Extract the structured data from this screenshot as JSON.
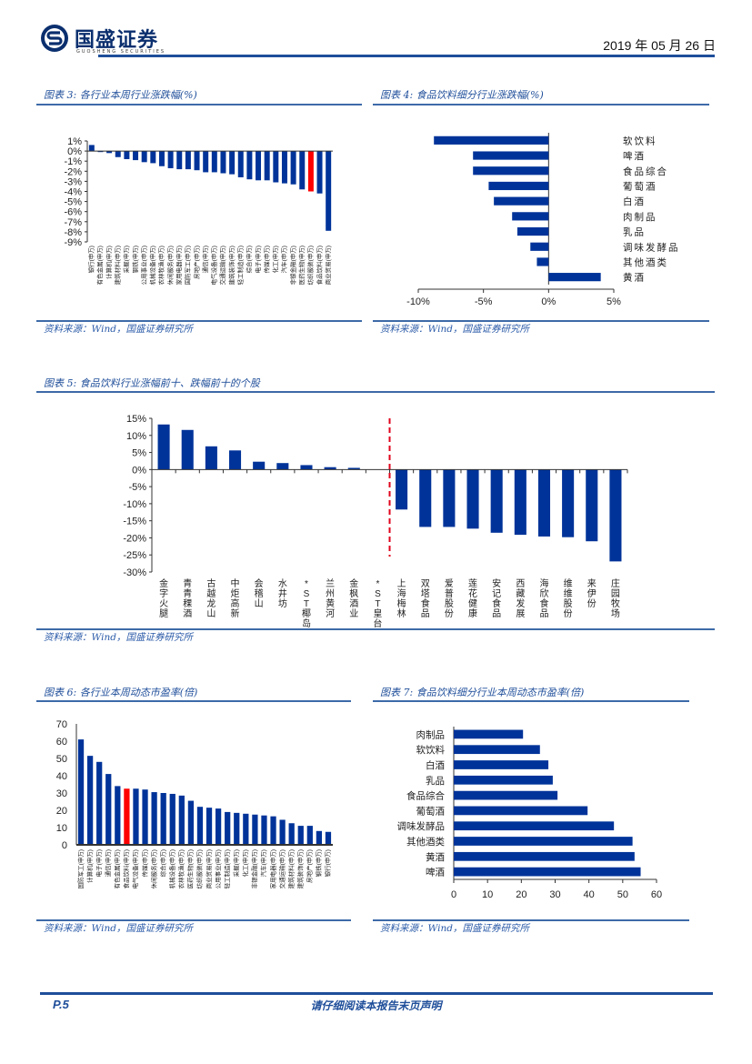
{
  "header": {
    "logo_name": "国盛证券",
    "logo_sub": "GUOSHENG SECURITIES",
    "date": "2019 年 05 月 26 日"
  },
  "colors": {
    "bar": "#003399",
    "highlight": "#ff0000",
    "accent": "#1f4e9a",
    "divider": "#e0001b"
  },
  "figures": [
    {
      "title": "图表 3:  各行业本周行业涨跌幅(%)",
      "source": "资料来源：Wind，国盛证券研究所"
    },
    {
      "title": "图表 4:  食品饮料细分行业涨跌幅(%)",
      "source": "资料来源：Wind，国盛证券研究所"
    },
    {
      "title": "图表 5:  食品饮料行业涨幅前十、跌幅前十的个股",
      "source": "资料来源：Wind，国盛证券研究所"
    },
    {
      "title": "图表 6:  各行业本周动态市盈率(倍)",
      "source": "资料来源：Wind，国盛证券研究所"
    },
    {
      "title": "图表 7:  食品饮料细分行业本周动态市盈率(倍)",
      "source": "资料来源：Wind，国盛证券研究所"
    }
  ],
  "footer": {
    "page": "P.5",
    "disclaimer": "请仔细阅读本报告末页声明"
  },
  "chart_data": [
    {
      "type": "bar",
      "title": "各行业本周行业涨跌幅(%)",
      "categories": [
        "银行(申万)",
        "有色金属(申万)",
        "计算机(申万)",
        "建筑材料(申万)",
        "采掘(申万)",
        "钢铁(申万)",
        "公用事业(申万)",
        "机械设备(申万)",
        "农林牧渔(申万)",
        "休闲服务(申万)",
        "家用电器(申万)",
        "国防军工(申万)",
        "房地产(申万)",
        "通信(申万)",
        "电气设备(申万)",
        "交通运输(申万)",
        "建筑装饰(申万)",
        "轻工制造(申万)",
        "综合(申万)",
        "电子(申万)",
        "传媒(申万)",
        "化工(申万)",
        "汽车(申万)",
        "非银金融(申万)",
        "医药生物(申万)",
        "纺织服装(申万)",
        "食品饮料(申万)",
        "商业贸易(申万)"
      ],
      "values": [
        0.6,
        -0.1,
        -0.2,
        -0.6,
        -0.8,
        -0.9,
        -1.1,
        -1.2,
        -1.5,
        -1.7,
        -1.8,
        -1.8,
        -1.9,
        -2.1,
        -2.1,
        -2.2,
        -2.3,
        -2.6,
        -2.8,
        -2.9,
        -2.9,
        -3.1,
        -3.2,
        -3.3,
        -3.8,
        -4.0,
        -4.2,
        -7.9
      ],
      "highlight_index": 25,
      "yticks": [
        "1%",
        "0%",
        "-1%",
        "-2%",
        "-3%",
        "-4%",
        "-5%",
        "-6%",
        "-7%",
        "-8%",
        "-9%"
      ],
      "ylim": [
        -9,
        1
      ]
    },
    {
      "type": "bar",
      "orientation": "horizontal",
      "title": "食品饮料细分行业涨跌幅(%)",
      "categories": [
        "软饮料",
        "啤酒",
        "食品综合",
        "葡萄酒",
        "白酒",
        "肉制品",
        "乳品",
        "调味发酵品",
        "其他酒类",
        "黄酒"
      ],
      "values": [
        -8.8,
        -5.8,
        -5.8,
        -4.6,
        -4.2,
        -2.8,
        -2.4,
        -1.4,
        -0.9,
        4.0
      ],
      "xticks": [
        "-10%",
        "-5%",
        "0%",
        "5%"
      ],
      "xlim": [
        -10,
        5
      ]
    },
    {
      "type": "bar",
      "title": "食品饮料行业涨幅前十、跌幅前十的个股",
      "categories": [
        "金字火腿",
        "青青稞酒",
        "古越龙山",
        "中炬高新",
        "会稽山",
        "水井坊",
        "*ST椰岛",
        "兰州黄河",
        "金枫酒业",
        "*ST皇台",
        "上海梅林",
        "双塔食品",
        "爱普股份",
        "莲花健康",
        "安记食品",
        "西藏发展",
        "海欣食品",
        "维维股份",
        "来伊份",
        "庄园牧场"
      ],
      "values": [
        13.2,
        11.6,
        6.8,
        5.6,
        2.3,
        1.9,
        1.3,
        0.7,
        0.5,
        0.0,
        -11.7,
        -16.8,
        -16.8,
        -17.3,
        -18.5,
        -19.1,
        -19.6,
        -19.8,
        -21.0,
        -26.9
      ],
      "yticks": [
        "15%",
        "10%",
        "5%",
        "0%",
        "-5%",
        "-10%",
        "-15%",
        "-20%",
        "-25%",
        "-30%"
      ],
      "ylim": [
        -30,
        15
      ],
      "divider_after_index": 9
    },
    {
      "type": "bar",
      "title": "各行业本周动态市盈率(倍)",
      "categories": [
        "国防军工(申万)",
        "计算机(申万)",
        "电子(申万)",
        "通信(申万)",
        "有色金属(申万)",
        "食品饮料(申万)",
        "电气设备(申万)",
        "传媒(申万)",
        "休闲服务(申万)",
        "综合(申万)",
        "机械设备(申万)",
        "农林牧渔(申万)",
        "医药生物(申万)",
        "纺织服装(申万)",
        "商业贸易(申万)",
        "公用事业(申万)",
        "轻工制造(申万)",
        "采掘(申万)",
        "化工(申万)",
        "非银金融(申万)",
        "汽车(申万)",
        "家用电器(申万)",
        "交通运输(申万)",
        "建筑材料(申万)",
        "建筑装饰(申万)",
        "房地产(申万)",
        "钢铁(申万)",
        "银行(申万)"
      ],
      "values": [
        61,
        51.5,
        48,
        41,
        34,
        32.5,
        32.5,
        32,
        30.5,
        30,
        29.5,
        28.5,
        25.5,
        22,
        21.5,
        21,
        19,
        18.5,
        18,
        17.5,
        17,
        16.5,
        14.5,
        12.5,
        11,
        11,
        8,
        7.5
      ],
      "highlight_index": 5,
      "yticks": [
        "70",
        "60",
        "50",
        "40",
        "30",
        "20",
        "10",
        "0"
      ],
      "ylim": [
        0,
        70
      ]
    },
    {
      "type": "bar",
      "orientation": "horizontal",
      "title": "食品饮料细分行业本周动态市盈率(倍)",
      "categories": [
        "肉制品",
        "软饮料",
        "白酒",
        "乳品",
        "食品综合",
        "葡萄酒",
        "调味发酵品",
        "其他酒类",
        "黄酒",
        "啤酒"
      ],
      "values": [
        20.5,
        25.5,
        28,
        29.3,
        30.7,
        39.6,
        47.4,
        52.9,
        53.5,
        55.3
      ],
      "xticks": [
        "0",
        "10",
        "20",
        "30",
        "40",
        "50",
        "60"
      ],
      "xlim": [
        0,
        60
      ]
    }
  ]
}
